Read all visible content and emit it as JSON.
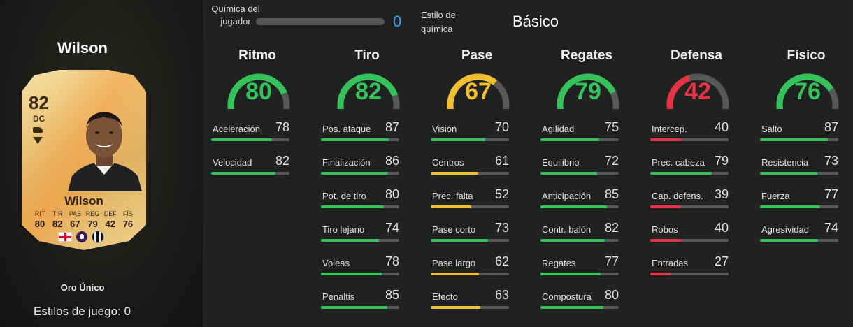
{
  "player": {
    "name": "Wilson",
    "card": {
      "overall": "82",
      "position": "DC",
      "name": "Wilson",
      "stats": [
        {
          "label": "RIT",
          "value": "80"
        },
        {
          "label": "TIR",
          "value": "82"
        },
        {
          "label": "PAS",
          "value": "67"
        },
        {
          "label": "REG",
          "value": "79"
        },
        {
          "label": "DEF",
          "value": "42"
        },
        {
          "label": "FÍS",
          "value": "76"
        }
      ]
    },
    "card_type": "Oro Único",
    "playstyles": "Estilos de juego: 0"
  },
  "chemistry": {
    "label": "Química del jugador",
    "value": "0",
    "style_label": "Estilo de química",
    "style_value": "Básico"
  },
  "colors": {
    "green": "#35c25a",
    "yellow": "#f0c030",
    "red": "#e53345",
    "chem_blue": "#37a4f5"
  },
  "icons": [
    "boot-icon",
    "chevron-icon",
    "england-flag-icon",
    "premier-league-icon",
    "newcastle-badge-icon"
  ],
  "categories": [
    {
      "title": "Ritmo",
      "value": 80,
      "color": "green",
      "subs": [
        {
          "label": "Aceleración",
          "value": 78
        },
        {
          "label": "Velocidad",
          "value": 82
        }
      ]
    },
    {
      "title": "Tiro",
      "value": 82,
      "color": "green",
      "subs": [
        {
          "label": "Pos. ataque",
          "value": 87
        },
        {
          "label": "Finalización",
          "value": 86
        },
        {
          "label": "Pot. de tiro",
          "value": 80
        },
        {
          "label": "Tiro lejano",
          "value": 74
        },
        {
          "label": "Voleas",
          "value": 78
        },
        {
          "label": "Penaltis",
          "value": 85
        }
      ]
    },
    {
      "title": "Pase",
      "value": 67,
      "color": "yellow",
      "subs": [
        {
          "label": "Visión",
          "value": 70
        },
        {
          "label": "Centros",
          "value": 61
        },
        {
          "label": "Prec. falta",
          "value": 52
        },
        {
          "label": "Pase corto",
          "value": 73
        },
        {
          "label": "Pase largo",
          "value": 62
        },
        {
          "label": "Efecto",
          "value": 63
        }
      ]
    },
    {
      "title": "Regates",
      "value": 79,
      "color": "green",
      "subs": [
        {
          "label": "Agilidad",
          "value": 75
        },
        {
          "label": "Equilibrio",
          "value": 72
        },
        {
          "label": "Anticipación",
          "value": 85
        },
        {
          "label": "Contr. balón",
          "value": 82
        },
        {
          "label": "Regates",
          "value": 77
        },
        {
          "label": "Compostura",
          "value": 80
        }
      ]
    },
    {
      "title": "Defensa",
      "value": 42,
      "color": "red",
      "subs": [
        {
          "label": "Intercep.",
          "value": 40
        },
        {
          "label": "Prec. cabeza",
          "value": 79
        },
        {
          "label": "Cap. defens.",
          "value": 39
        },
        {
          "label": "Robos",
          "value": 40
        },
        {
          "label": "Entradas",
          "value": 27
        }
      ]
    },
    {
      "title": "Físico",
      "value": 76,
      "color": "green",
      "subs": [
        {
          "label": "Salto",
          "value": 87
        },
        {
          "label": "Resistencia",
          "value": 73
        },
        {
          "label": "Fuerza",
          "value": 77
        },
        {
          "label": "Agresividad",
          "value": 74
        }
      ]
    }
  ]
}
